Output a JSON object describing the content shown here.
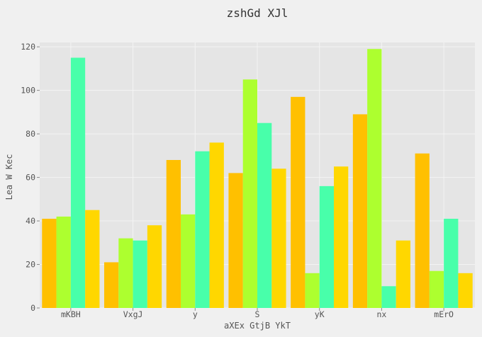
{
  "chart_data": {
    "type": "bar",
    "title": "zshGd XJl",
    "xlabel": "aXEx GtjB YkT",
    "ylabel": "Lea W Kec",
    "categories": [
      "mKBH",
      "VxgJ",
      "y",
      "S",
      "yK",
      "nx",
      "mErO"
    ],
    "series": [
      {
        "color": "#FFC000",
        "values": [
          41,
          21,
          68,
          62,
          97,
          89,
          71
        ]
      },
      {
        "color": "#ADFF2F",
        "values": [
          42,
          32,
          43,
          105,
          16,
          119,
          17
        ]
      },
      {
        "color": "#48FFAA",
        "values": [
          115,
          31,
          72,
          85,
          56,
          10,
          41
        ]
      },
      {
        "color": "#FFD700",
        "values": [
          45,
          38,
          76,
          64,
          65,
          31,
          16
        ]
      }
    ],
    "ylim": [
      0,
      122
    ],
    "yticks": [
      0,
      20,
      40,
      60,
      80,
      100,
      120
    ],
    "grid": true,
    "plot_background": "#e5e5e5",
    "page_background": "#f0f0f0"
  }
}
